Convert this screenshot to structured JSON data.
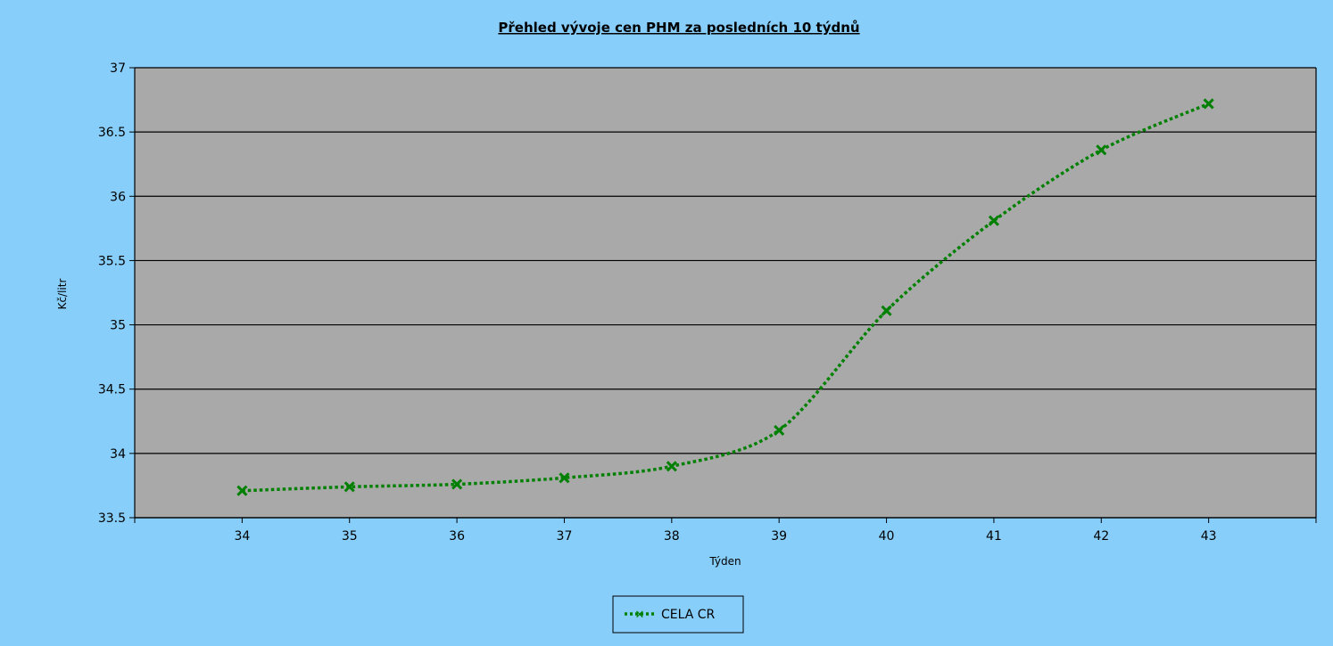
{
  "chart_data": {
    "type": "line",
    "title": "Přehled vývoje cen PHM za posledních 10 týdnů",
    "xlabel": "Týden",
    "ylabel": "Kč/litr",
    "x": [
      34,
      35,
      36,
      37,
      38,
      39,
      40,
      41,
      42,
      43
    ],
    "xlim": [
      33,
      44
    ],
    "ylim": [
      33.5,
      37
    ],
    "yticks": [
      "33.5",
      "34",
      "34.5",
      "35",
      "35.5",
      "36",
      "36.5",
      "37"
    ],
    "xticks": [
      "34",
      "35",
      "36",
      "37",
      "38",
      "39",
      "40",
      "41",
      "42",
      "43"
    ],
    "grid": true,
    "legend_position": "bottom",
    "series": [
      {
        "name": "CELA CR",
        "values": [
          33.71,
          33.74,
          33.76,
          33.81,
          33.9,
          34.18,
          35.11,
          35.81,
          36.36,
          36.72
        ],
        "color": "#008000",
        "marker": "x",
        "line_style": "dotted"
      }
    ],
    "colors": {
      "background": "#87cefa",
      "plot_background": "#a9a9a9",
      "grid": "#000000"
    }
  }
}
